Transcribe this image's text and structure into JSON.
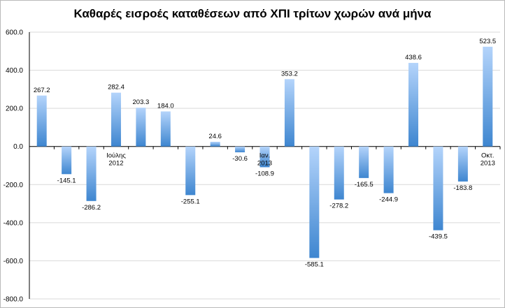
{
  "chart_data": {
    "type": "bar",
    "title": "Καθαρές εισροές καταθέσεων από ΧΠΙ τρίτων χωρών ανά μήνα",
    "xlabel": "",
    "ylabel": "",
    "ylim": [
      -800,
      600
    ],
    "yticks": [
      "600.0",
      "400.0",
      "200.0",
      "0.0",
      "-200.0",
      "-400.0",
      "-600.0",
      "-800.0"
    ],
    "ytick_values": [
      600,
      400,
      200,
      0,
      -200,
      -400,
      -600,
      -800
    ],
    "grid": true,
    "values": [
      267.2,
      -145.1,
      -286.2,
      282.4,
      203.3,
      184.0,
      -255.1,
      24.6,
      -30.6,
      -108.9,
      353.2,
      -585.1,
      -278.2,
      -165.5,
      -244.9,
      438.6,
      -439.5,
      -183.8,
      523.5
    ],
    "value_labels": [
      "267.2",
      "-145.1",
      "-286.2",
      "282.4",
      "203.3",
      "184.0",
      "-255.1",
      "24.6",
      "-30.6",
      "-108.9",
      "353.2",
      "-585.1",
      "-278.2",
      "-165.5",
      "-244.9",
      "438.6",
      "-439.5",
      "-183.8",
      "523.5"
    ],
    "category_annotations": [
      {
        "index": 3,
        "lines": [
          "Ιούλης",
          "2012"
        ]
      },
      {
        "index": 9,
        "lines": [
          "Ιαν.",
          "2013"
        ]
      },
      {
        "index": 18,
        "lines": [
          "Οκτ.",
          "2013"
        ]
      }
    ],
    "colors": {
      "bar_light": "#b4d4fb",
      "bar_dark": "#3e86d0",
      "grid": "#d9d9d9"
    }
  }
}
